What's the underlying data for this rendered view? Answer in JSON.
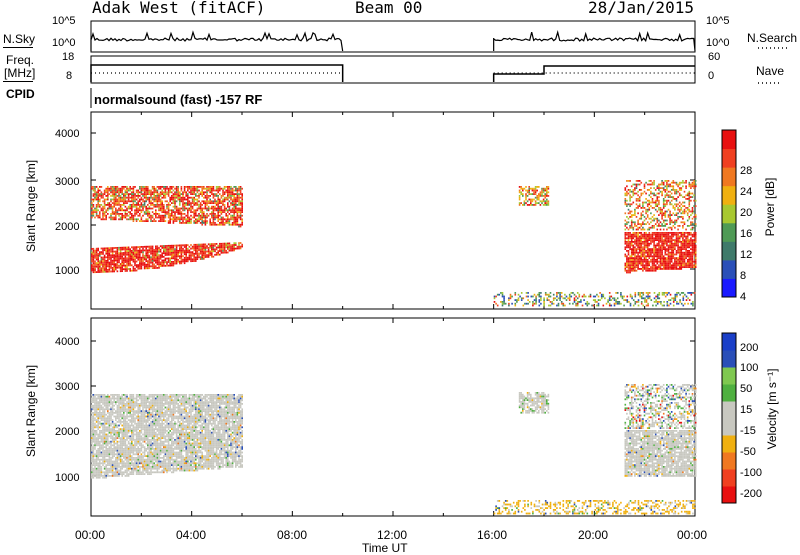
{
  "header": {
    "station": "Adak West (fitACF)",
    "beam": "Beam 00",
    "date": "28/Jan/2015"
  },
  "left_labels": {
    "nsky": "N.Sky",
    "freq_line1": "Freq.",
    "freq_line2": "[MHz]",
    "cpid": "CPID"
  },
  "right_labels": {
    "nsearch": "N.Search",
    "nave": "Nave"
  },
  "cpid_text": "normalsound (fast) -157 RF",
  "panel_ticks": {
    "nsky_left": [
      "10^5",
      "10^0"
    ],
    "nsky_right": [
      "10^5",
      "10^0"
    ],
    "freq_left": [
      "18",
      "8"
    ],
    "nave_right": [
      "60",
      "0"
    ]
  },
  "colors": {
    "power_scale": [
      "#1a1aff",
      "#2a4fb8",
      "#3f7a6a",
      "#4f9a55",
      "#a8c830",
      "#f0b010",
      "#f07820",
      "#f04020",
      "#e81010"
    ],
    "velocity_scale": [
      "#e81010",
      "#f04020",
      "#f07820",
      "#f0b010",
      "#c8c8c0",
      "#c8c8c0",
      "#4fb040",
      "#7fc850",
      "#2a4fb8",
      "#1a3fc8"
    ]
  },
  "chart_data": [
    {
      "type": "line",
      "title": "N.Sky / N.Search",
      "x_range": [
        "00:00",
        "24:00"
      ],
      "series": [
        {
          "name": "N.Sky",
          "segments": [
            [
              "00:00",
              "10:00"
            ],
            [
              "16:00",
              "24:00"
            ]
          ]
        },
        {
          "name": "N.Search",
          "segments": [
            [
              "00:00",
              "10:00"
            ],
            [
              "16:00",
              "24:00"
            ]
          ]
        }
      ]
    },
    {
      "type": "line",
      "title": "Freq. / Nave",
      "x_range": [
        "00:00",
        "24:00"
      ],
      "ylim_left": [
        8,
        18
      ],
      "ylim_right": [
        0,
        60
      ],
      "series": [
        {
          "name": "Freq.",
          "segments": [
            [
              "00:00",
              "10:00"
            ],
            [
              "16:00",
              "24:00"
            ]
          ]
        },
        {
          "name": "Nave",
          "segments": [
            [
              "00:00",
              "10:00"
            ],
            [
              "16:00",
              "24:00"
            ]
          ]
        }
      ]
    },
    {
      "type": "heatmap",
      "ylabel": "Slant Range [km]",
      "yticks": [
        "1000",
        "2000",
        "3000",
        "4000"
      ],
      "ylim": [
        180,
        4600
      ],
      "colorbar_label": "Power [dB]",
      "colorbar_ticks": [
        "4",
        "8",
        "12",
        "16",
        "20",
        "24",
        "28"
      ],
      "x_range": [
        "00:00",
        "24:00"
      ],
      "data_gaps": [
        [
          "10:00",
          "16:00"
        ]
      ]
    },
    {
      "type": "heatmap",
      "ylabel": "Slant Range [km]",
      "yticks": [
        "1000",
        "2000",
        "3000",
        "4000"
      ],
      "ylim": [
        180,
        4600
      ],
      "colorbar_label": "Velocity [m s⁻¹]",
      "colorbar_ticks": [
        "200",
        "100",
        "50",
        "15",
        "-15",
        "-50",
        "-100",
        "-200"
      ],
      "x_range": [
        "00:00",
        "24:00"
      ],
      "xlabel": "Time UT",
      "xticks": [
        "00:00",
        "04:00",
        "08:00",
        "12:00",
        "16:00",
        "20:00",
        "00:00"
      ]
    }
  ]
}
